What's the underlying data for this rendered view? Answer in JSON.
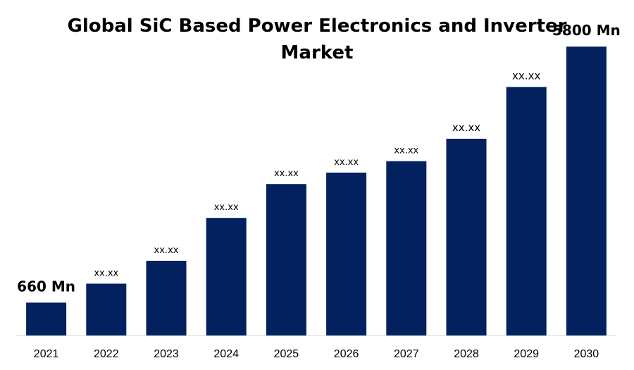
{
  "chart_data": {
    "type": "bar",
    "title_lines": [
      "Global SiC Based Power Electronics and Inverter",
      "Market"
    ],
    "categories": [
      "2021",
      "2022",
      "2023",
      "2024",
      "2025",
      "2026",
      "2027",
      "2028",
      "2029",
      "2030"
    ],
    "values": [
      660,
      1040,
      1500,
      2360,
      3040,
      3270,
      3500,
      3950,
      4990,
      5800
    ],
    "data_labels": [
      "660 Mn",
      "xx.xx",
      "xx.xx",
      "xx.xx",
      "xx.xx",
      "xx.xx",
      "xx.xx",
      "xx.xx",
      "xx.xx",
      "5800 Mn"
    ],
    "xlabel": "",
    "ylabel": "",
    "ylim": [
      0,
      6000
    ],
    "grid": false,
    "colors": {
      "bar": "#03215E",
      "axis": "#D9D9D9",
      "text": "#000000"
    }
  }
}
